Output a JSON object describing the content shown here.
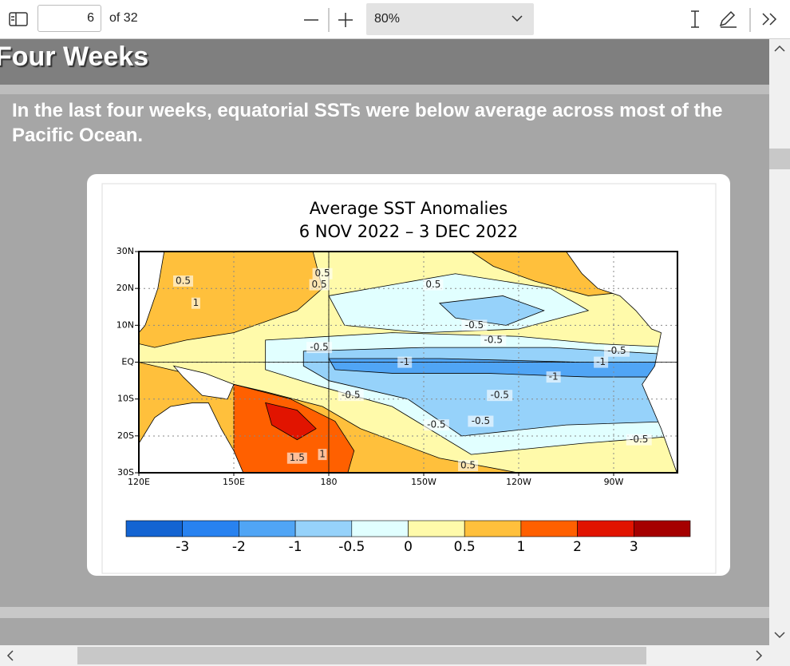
{
  "toolbar": {
    "page_number": "6",
    "page_count": "of 32",
    "zoom": "80%"
  },
  "slide": {
    "heading": "Four Weeks",
    "body": "In the last four weeks, equatorial SSTs were below average across most of the Pacific Ocean.",
    "figure": {
      "title": "Average SST Anomalies",
      "subtitle": "6 NOV 2022 – 3 DEC 2022",
      "lat_labels": [
        "30N",
        "20N",
        "10N",
        "EQ",
        "10S",
        "20S",
        "30S"
      ],
      "lon_labels": [
        "120E",
        "150E",
        "180",
        "150W",
        "120W",
        "90W"
      ],
      "contour_labels": [
        "0.5",
        "0.5",
        "0.5",
        "0.5",
        "1",
        "-0.5",
        "-0.5",
        "-0.5",
        "-1",
        "-1",
        "-1",
        "-0.5",
        "-0.5",
        "-0.5",
        "-0.5",
        "-0.5",
        "1.5",
        "1",
        "0.5",
        "-0.5"
      ],
      "colorbar": {
        "colors": [
          "#1464d2",
          "#2882f0",
          "#50a5f5",
          "#96d2fa",
          "#e1ffff",
          "#fffaaa",
          "#ffc03c",
          "#ff6000",
          "#e11400",
          "#a50000"
        ],
        "labels": [
          "-3",
          "-2",
          "-1",
          "-0.5",
          "0",
          "0.5",
          "1",
          "2",
          "3"
        ]
      }
    }
  }
}
